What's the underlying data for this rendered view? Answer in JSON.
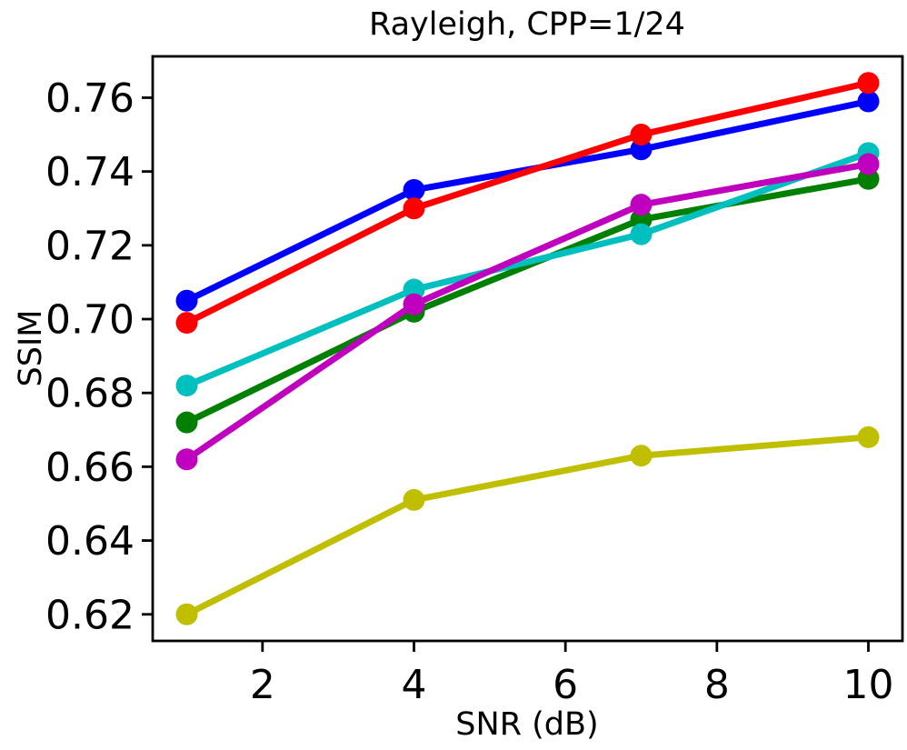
{
  "chart_data": {
    "type": "line",
    "title": "Rayleigh, CPP=1/24",
    "xlabel": "SNR (dB)",
    "ylabel": "SSIM",
    "x": [
      1,
      4,
      7,
      10
    ],
    "series": [
      {
        "name": "blue",
        "color": "#0000FF",
        "values": [
          0.705,
          0.735,
          0.746,
          0.759
        ]
      },
      {
        "name": "red",
        "color": "#FF0000",
        "values": [
          0.699,
          0.73,
          0.75,
          0.764
        ]
      },
      {
        "name": "green",
        "color": "#008000",
        "values": [
          0.672,
          0.702,
          0.727,
          0.738
        ]
      },
      {
        "name": "cyan",
        "color": "#00BFBF",
        "values": [
          0.682,
          0.708,
          0.723,
          0.745
        ]
      },
      {
        "name": "magenta",
        "color": "#BF00BF",
        "values": [
          0.662,
          0.704,
          0.731,
          0.742
        ]
      },
      {
        "name": "yellow",
        "color": "#BFBF00",
        "values": [
          0.62,
          0.651,
          0.663,
          0.668
        ]
      }
    ],
    "xticks": [
      2,
      4,
      6,
      8,
      10
    ],
    "yticks": [
      0.62,
      0.64,
      0.66,
      0.68,
      0.7,
      0.72,
      0.74,
      0.76
    ],
    "ytick_labels": [
      "0.62",
      "0.64",
      "0.66",
      "0.68",
      "0.70",
      "0.72",
      "0.74",
      "0.76"
    ],
    "xlim": [
      0.55,
      10.45
    ],
    "ylim": [
      0.6128,
      0.7712
    ],
    "grid": false,
    "legend": "none",
    "marker": "circle",
    "line_width": 7,
    "marker_radius": 12,
    "axis_color": "#000000",
    "background": "#FFFFFF"
  }
}
